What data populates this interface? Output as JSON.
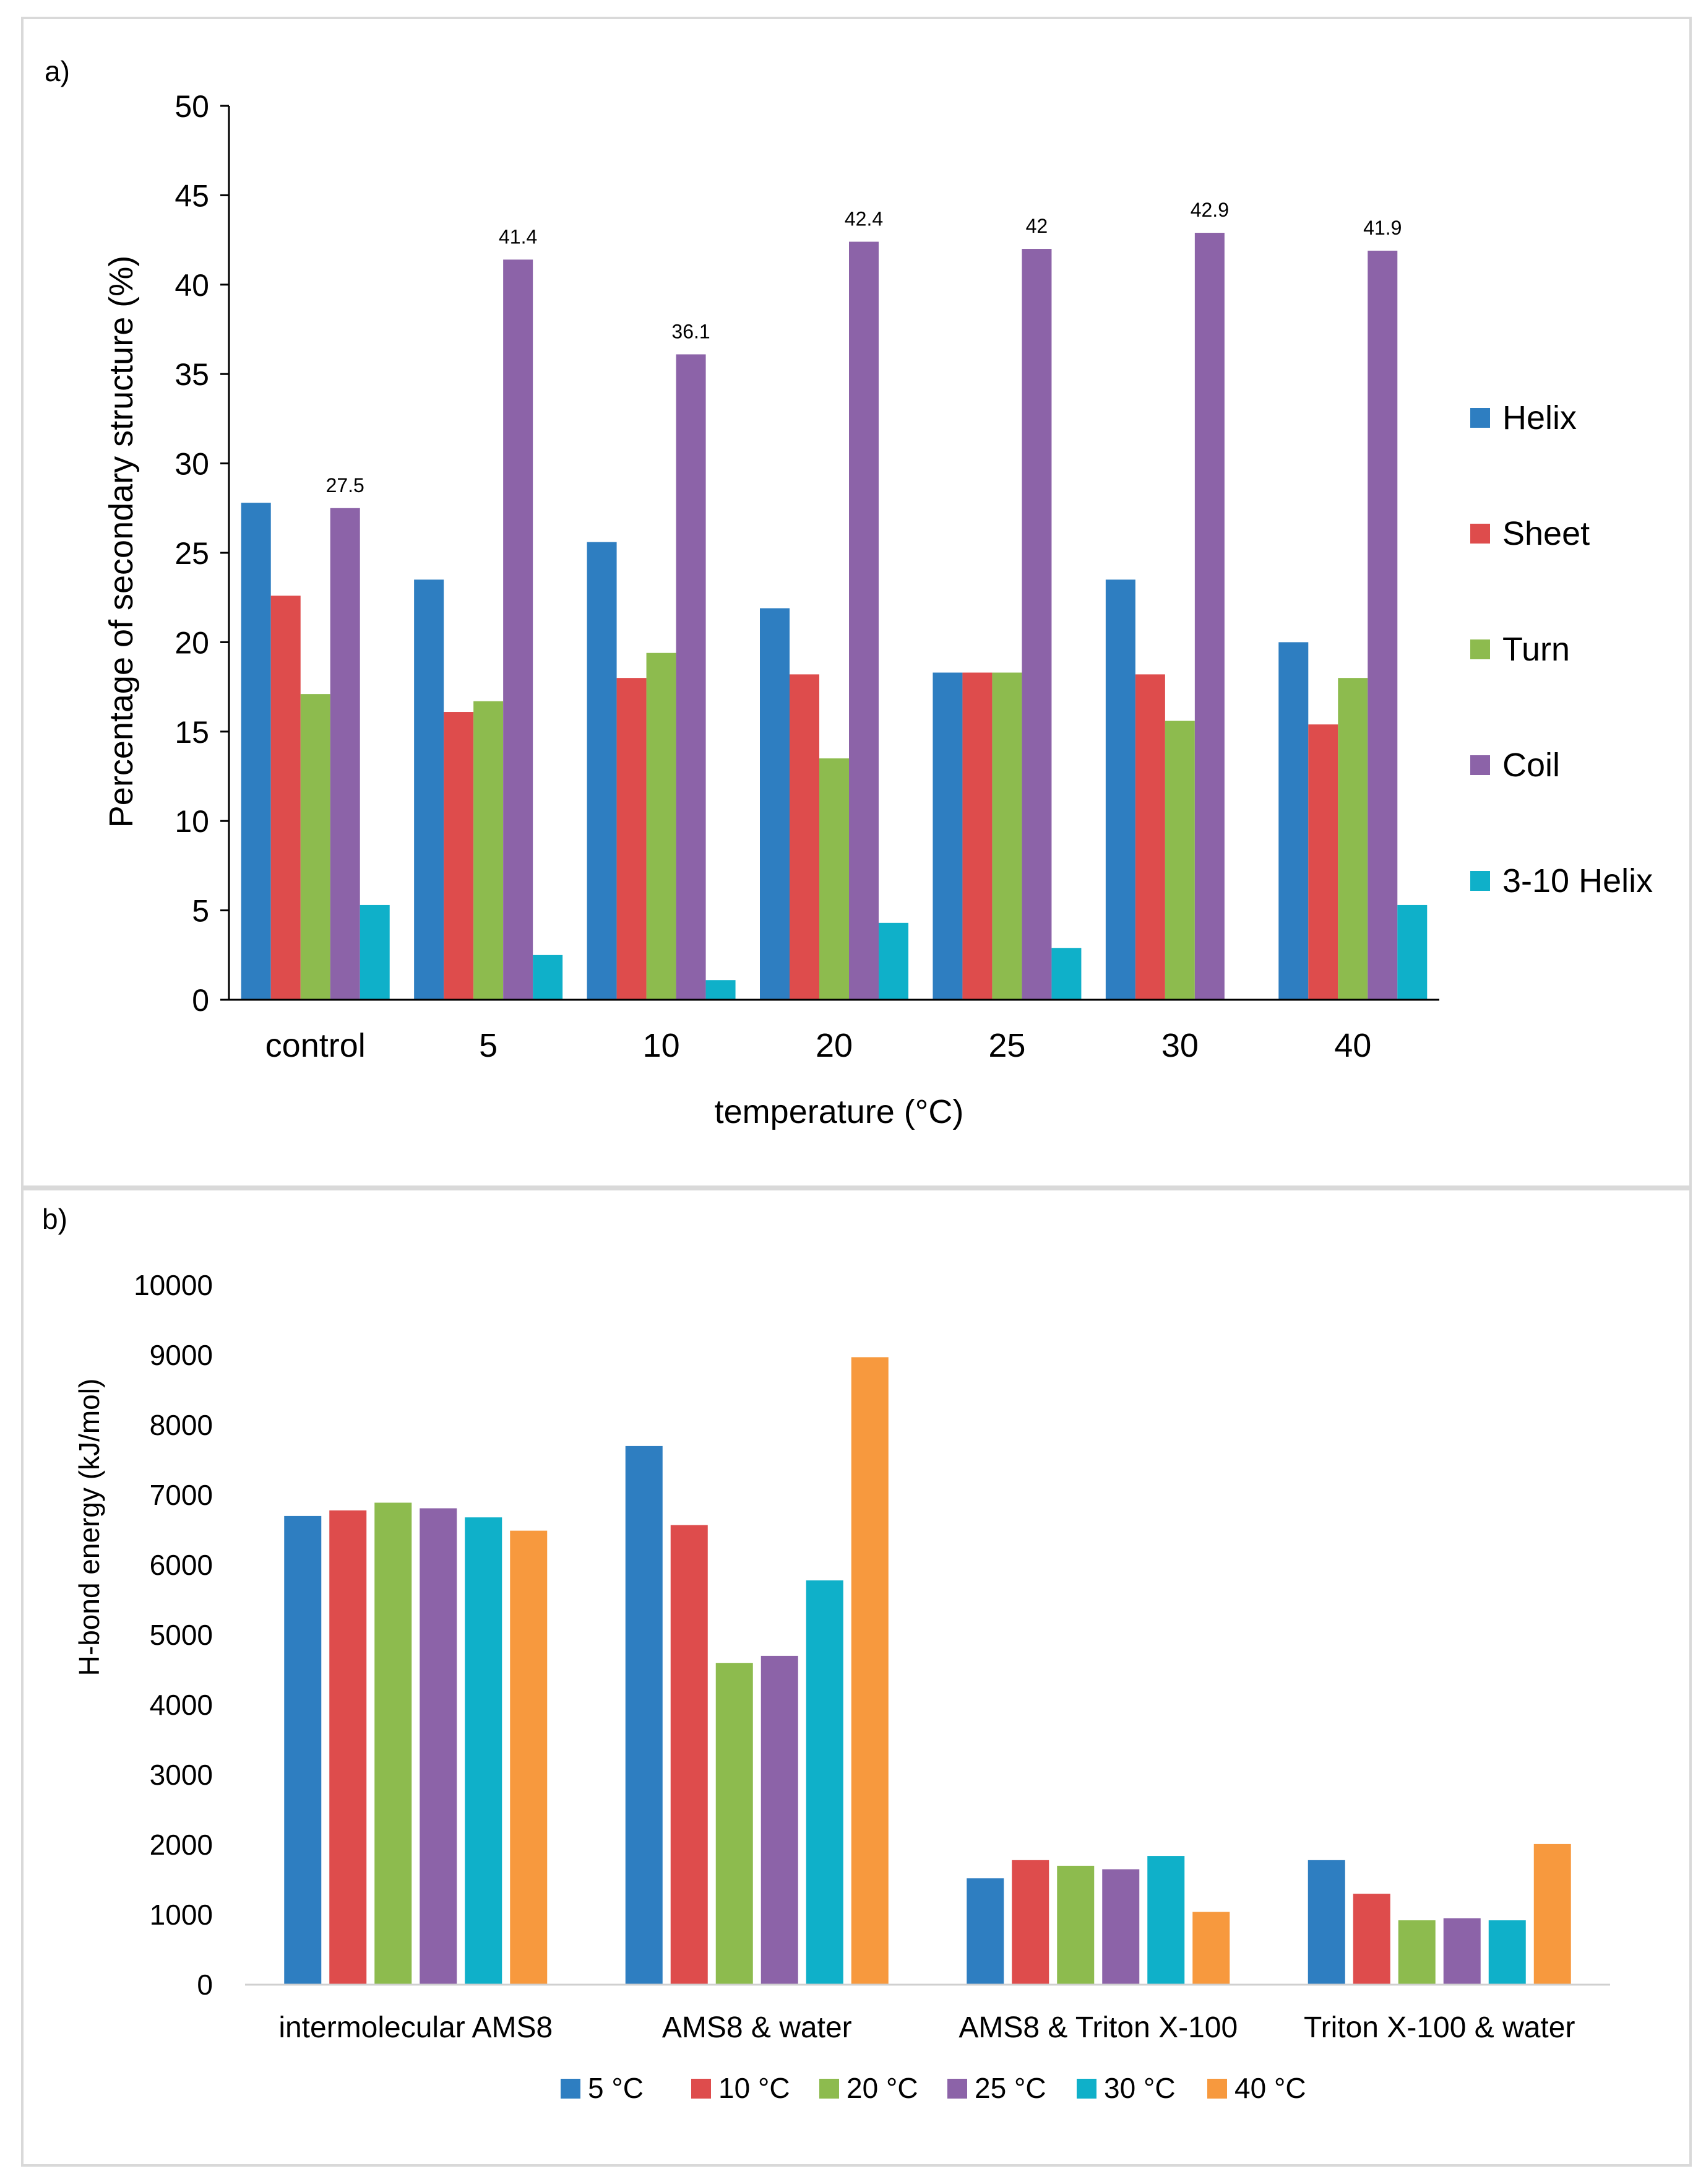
{
  "chart_data": [
    {
      "type": "bar",
      "panel_label": "a)",
      "title": "",
      "xlabel": "temperature (°C)",
      "ylabel": "Percentage of secondary structure (%)",
      "ylim": [
        0,
        50
      ],
      "yticks": [
        0,
        5,
        10,
        15,
        20,
        25,
        30,
        35,
        40,
        45,
        50
      ],
      "categories": [
        "control",
        "5",
        "10",
        "20",
        "25",
        "30",
        "40"
      ],
      "series": [
        {
          "name": "Helix",
          "color": "#2E7EC1",
          "values": [
            27.8,
            23.5,
            25.6,
            21.9,
            18.3,
            23.5,
            20.0
          ]
        },
        {
          "name": "Sheet",
          "color": "#DE4C4C",
          "values": [
            22.6,
            16.1,
            18.0,
            18.2,
            18.3,
            18.2,
            15.4
          ]
        },
        {
          "name": "Turn",
          "color": "#8DBB4E",
          "values": [
            17.1,
            16.7,
            19.4,
            13.5,
            18.3,
            15.6,
            18.0
          ]
        },
        {
          "name": "Coil",
          "color": "#8C63A8",
          "values": [
            27.5,
            41.4,
            36.1,
            42.4,
            42.0,
            42.9,
            41.9
          ],
          "labels": [
            "27.5",
            "41.4",
            "36.1",
            "42.4",
            "42",
            "42.9",
            "41.9"
          ]
        },
        {
          "name": "3-10 Helix",
          "color": "#0FB0C9",
          "values": [
            5.3,
            2.5,
            1.1,
            4.3,
            2.9,
            0,
            5.3
          ]
        }
      ],
      "legend_position": "right"
    },
    {
      "type": "bar",
      "panel_label": "b)",
      "title": "",
      "xlabel": "",
      "ylabel": "H-bond energy (kJ/mol)",
      "ylim": [
        0,
        10000
      ],
      "yticks": [
        0,
        1000,
        2000,
        3000,
        4000,
        5000,
        6000,
        7000,
        8000,
        9000,
        10000
      ],
      "categories": [
        "intermolecular AMS8",
        "AMS8 & water",
        "AMS8 & Triton X-100",
        "Triton X-100 & water"
      ],
      "series": [
        {
          "name": "5 °C",
          "color": "#2E7EC1",
          "values": [
            6700,
            7700,
            1520,
            1780
          ]
        },
        {
          "name": "10 °C",
          "color": "#DE4C4C",
          "values": [
            6780,
            6570,
            1780,
            1300
          ]
        },
        {
          "name": "20 °C",
          "color": "#8DBB4E",
          "values": [
            6890,
            4600,
            1700,
            920
          ]
        },
        {
          "name": "25 °C",
          "color": "#8C63A8",
          "values": [
            6810,
            4700,
            1650,
            950
          ]
        },
        {
          "name": "30 °C",
          "color": "#0FB0C9",
          "values": [
            6680,
            5780,
            1840,
            920
          ]
        },
        {
          "name": "40 °C",
          "color": "#F7993E",
          "values": [
            6490,
            8970,
            1040,
            2010
          ]
        }
      ],
      "legend_position": "bottom"
    }
  ]
}
